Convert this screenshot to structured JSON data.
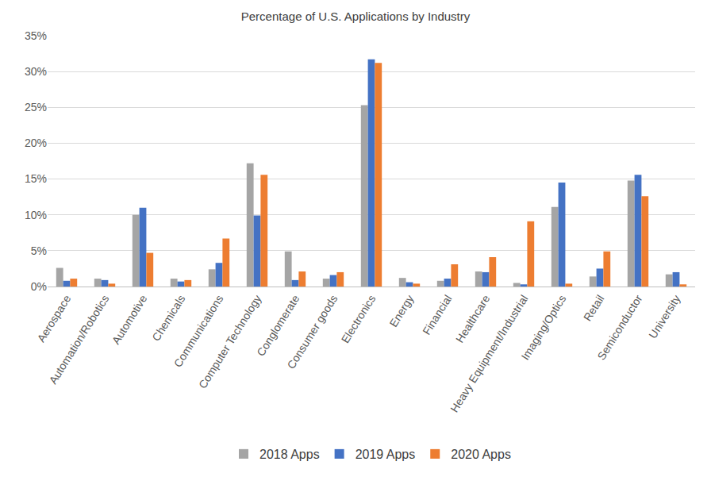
{
  "chart_data": {
    "type": "bar",
    "title": "Percentage of U.S. Applications by Industry",
    "categories": [
      "Aerospace",
      "Automation/Robotics",
      "Automotive",
      "Chemicals",
      "Communications",
      "Computer Technology",
      "Conglomerate",
      "Consumer goods",
      "Electronics",
      "Energy",
      "Financial",
      "Healthcare",
      "Heavy Equipment/Industrial",
      "Imaging/Optics",
      "Retail",
      "Semiconductor",
      "University"
    ],
    "series": [
      {
        "name": "2018 Apps",
        "color": "#a5a5a5",
        "values": [
          2.6,
          1.1,
          10.0,
          1.1,
          2.4,
          17.2,
          4.9,
          1.1,
          25.3,
          1.2,
          0.8,
          2.1,
          0.5,
          11.1,
          1.4,
          14.8,
          1.7
        ]
      },
      {
        "name": "2019 Apps",
        "color": "#4472c4",
        "values": [
          0.8,
          0.9,
          11.0,
          0.7,
          3.3,
          9.9,
          0.9,
          1.6,
          31.7,
          0.6,
          1.1,
          2.0,
          0.3,
          14.5,
          2.5,
          15.6,
          2.0
        ]
      },
      {
        "name": "2020 Apps",
        "color": "#ed7d31",
        "values": [
          1.1,
          0.4,
          4.7,
          0.9,
          6.7,
          15.6,
          2.1,
          2.0,
          31.2,
          0.4,
          3.1,
          4.1,
          9.1,
          0.4,
          4.9,
          12.6,
          0.3
        ]
      }
    ],
    "ylim": [
      0,
      35
    ],
    "yticks": [
      {
        "value": 0,
        "label": "0%"
      },
      {
        "value": 5,
        "label": "5%"
      },
      {
        "value": 10,
        "label": "10%"
      },
      {
        "value": 15,
        "label": "15%"
      },
      {
        "value": 20,
        "label": "20%"
      },
      {
        "value": 25,
        "label": "25%"
      },
      {
        "value": 30,
        "label": "30%"
      },
      {
        "value": 35,
        "label": "35%"
      }
    ],
    "grid": true,
    "legend": "bottom"
  }
}
